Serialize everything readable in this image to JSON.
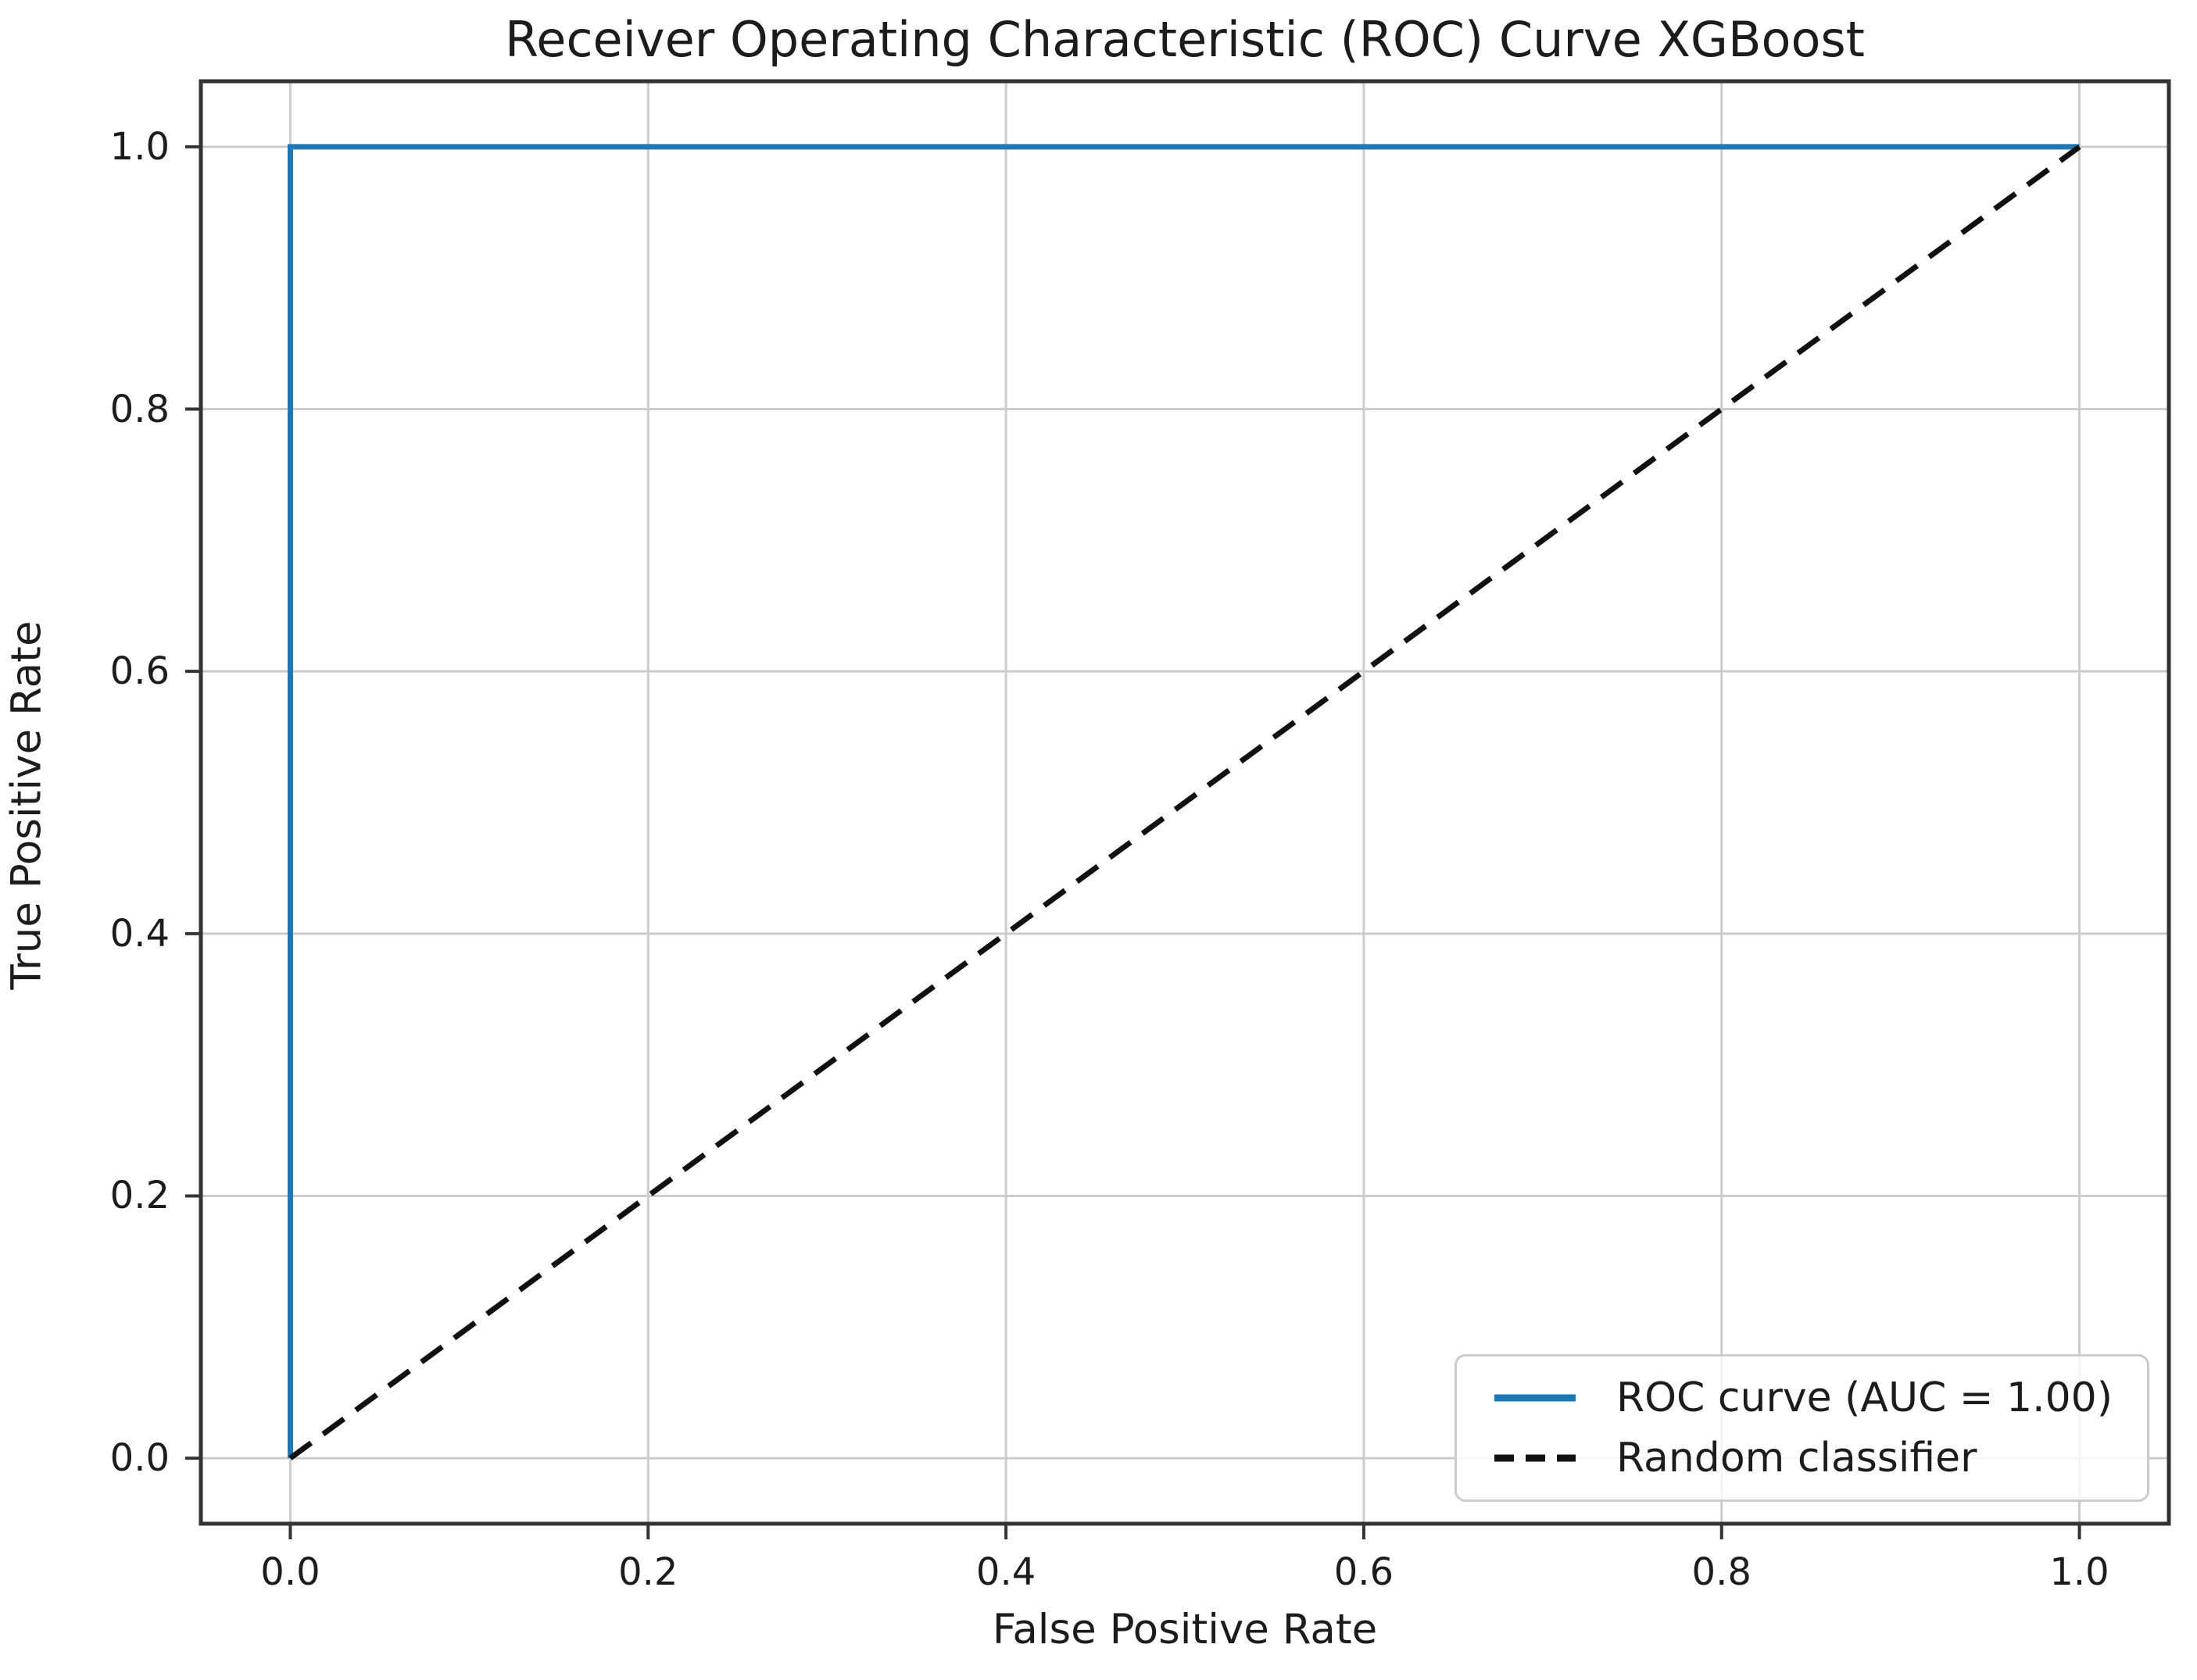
{
  "figure": {
    "background": "#ffffff"
  },
  "colors": {
    "roc_curve": "#1f77b4",
    "random_classifier": "#111111",
    "grid": "#cccccc",
    "spine": "#333333",
    "text": "#1c1c1c",
    "legend_border": "#cccccc"
  },
  "chart_data": {
    "type": "line",
    "title": "Receiver Operating Characteristic (ROC) Curve XGBoost",
    "xlabel": "False Positive Rate",
    "ylabel": "True Positive Rate",
    "xlim": [
      0.0,
      1.0
    ],
    "ylim": [
      0.0,
      1.0
    ],
    "x_ticks": [
      0.0,
      0.2,
      0.4,
      0.6,
      0.8,
      1.0
    ],
    "y_ticks": [
      0.0,
      0.2,
      0.4,
      0.6,
      0.8,
      1.0
    ],
    "x_tick_labels": [
      "0.0",
      "0.2",
      "0.4",
      "0.6",
      "0.8",
      "1.0"
    ],
    "y_tick_labels": [
      "0.0",
      "0.2",
      "0.4",
      "0.6",
      "0.8",
      "1.0"
    ],
    "grid": true,
    "legend_position": "lower right",
    "series": [
      {
        "name": "ROC curve (AUC = 1.00)",
        "color": "#1f77b4",
        "style": "solid",
        "x": [
          0.0,
          0.0,
          1.0
        ],
        "y": [
          0.0,
          1.0,
          1.0
        ]
      },
      {
        "name": "Random classifier",
        "color": "#111111",
        "style": "dashed",
        "x": [
          0.0,
          1.0
        ],
        "y": [
          0.0,
          1.0
        ]
      }
    ]
  }
}
